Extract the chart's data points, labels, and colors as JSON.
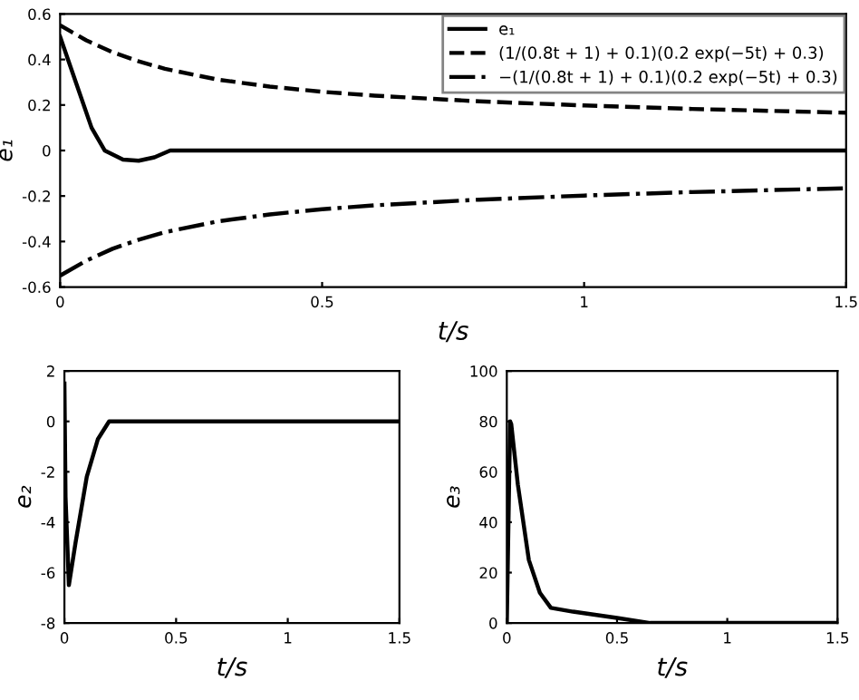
{
  "chart_data": [
    {
      "type": "line",
      "xlabel": "t/s",
      "ylabel": "e₁",
      "xlim": [
        0,
        1.5
      ],
      "xticks": [
        0,
        0.5,
        1,
        1.5
      ],
      "ylim": [
        -0.6,
        0.6
      ],
      "yticks": [
        -0.6,
        -0.4,
        -0.2,
        0,
        0.2,
        0.4,
        0.6
      ],
      "grid": false,
      "legend": "top right",
      "marker": "none",
      "series": [
        {
          "name": "e₁",
          "color": "#000000",
          "line_style": "solid",
          "x": [
            0,
            0.03,
            0.06,
            0.085,
            0.12,
            0.15,
            0.18,
            0.21,
            1.5
          ],
          "values": [
            0.5,
            0.3,
            0.1,
            0,
            -0.04,
            -0.045,
            -0.03,
            0,
            0
          ]
        },
        {
          "name": "(1/(0.8t + 1) + 0.1)(0.2 exp(−5t) + 0.3)",
          "color": "#000000",
          "line_style": "dashed",
          "x": [
            0,
            0.05,
            0.1,
            0.15,
            0.2,
            0.3,
            0.4,
            0.5,
            0.6,
            0.8,
            1.0,
            1.2,
            1.5
          ],
          "values": [
            0.55,
            0.484,
            0.432,
            0.392,
            0.359,
            0.312,
            0.281,
            0.258,
            0.241,
            0.216,
            0.198,
            0.183,
            0.166
          ]
        },
        {
          "name": "−(1/(0.8t + 1) + 0.1)(0.2 exp(−5t) + 0.3)",
          "color": "#000000",
          "line_style": "dashdot",
          "x": [
            0,
            0.05,
            0.1,
            0.15,
            0.2,
            0.3,
            0.4,
            0.5,
            0.6,
            0.8,
            1.0,
            1.2,
            1.5
          ],
          "values": [
            -0.55,
            -0.484,
            -0.432,
            -0.392,
            -0.359,
            -0.312,
            -0.281,
            -0.258,
            -0.241,
            -0.216,
            -0.198,
            -0.183,
            -0.166
          ]
        }
      ]
    },
    {
      "type": "line",
      "xlabel": "t/s",
      "ylabel": "e₂",
      "xlim": [
        0,
        1.5
      ],
      "xticks": [
        0,
        0.5,
        1,
        1.5
      ],
      "ylim": [
        -8,
        2
      ],
      "yticks": [
        -8,
        -6,
        -4,
        -2,
        0,
        2
      ],
      "grid": false,
      "legend": false,
      "marker": "none",
      "series": [
        {
          "color": "#000000",
          "line_style": "solid",
          "x": [
            0,
            0.005,
            0.02,
            0.05,
            0.1,
            0.15,
            0.2,
            1.5
          ],
          "values": [
            1.5,
            -3,
            -6.5,
            -4.8,
            -2.2,
            -0.7,
            0,
            0
          ]
        }
      ]
    },
    {
      "type": "line",
      "xlabel": "t/s",
      "ylabel": "e₃",
      "xlim": [
        0,
        1.5
      ],
      "xticks": [
        0,
        0.5,
        1,
        1.5
      ],
      "ylim": [
        0,
        100
      ],
      "yticks": [
        0,
        20,
        40,
        60,
        80,
        100
      ],
      "grid": false,
      "legend": false,
      "marker": "none",
      "series": [
        {
          "color": "#000000",
          "line_style": "solid",
          "x": [
            0,
            0.015,
            0.02,
            0.05,
            0.1,
            0.15,
            0.2,
            0.3,
            0.5,
            0.65,
            1.5
          ],
          "values": [
            0,
            80,
            79,
            55,
            25,
            12,
            6,
            4.5,
            2,
            0,
            0
          ]
        }
      ]
    }
  ]
}
